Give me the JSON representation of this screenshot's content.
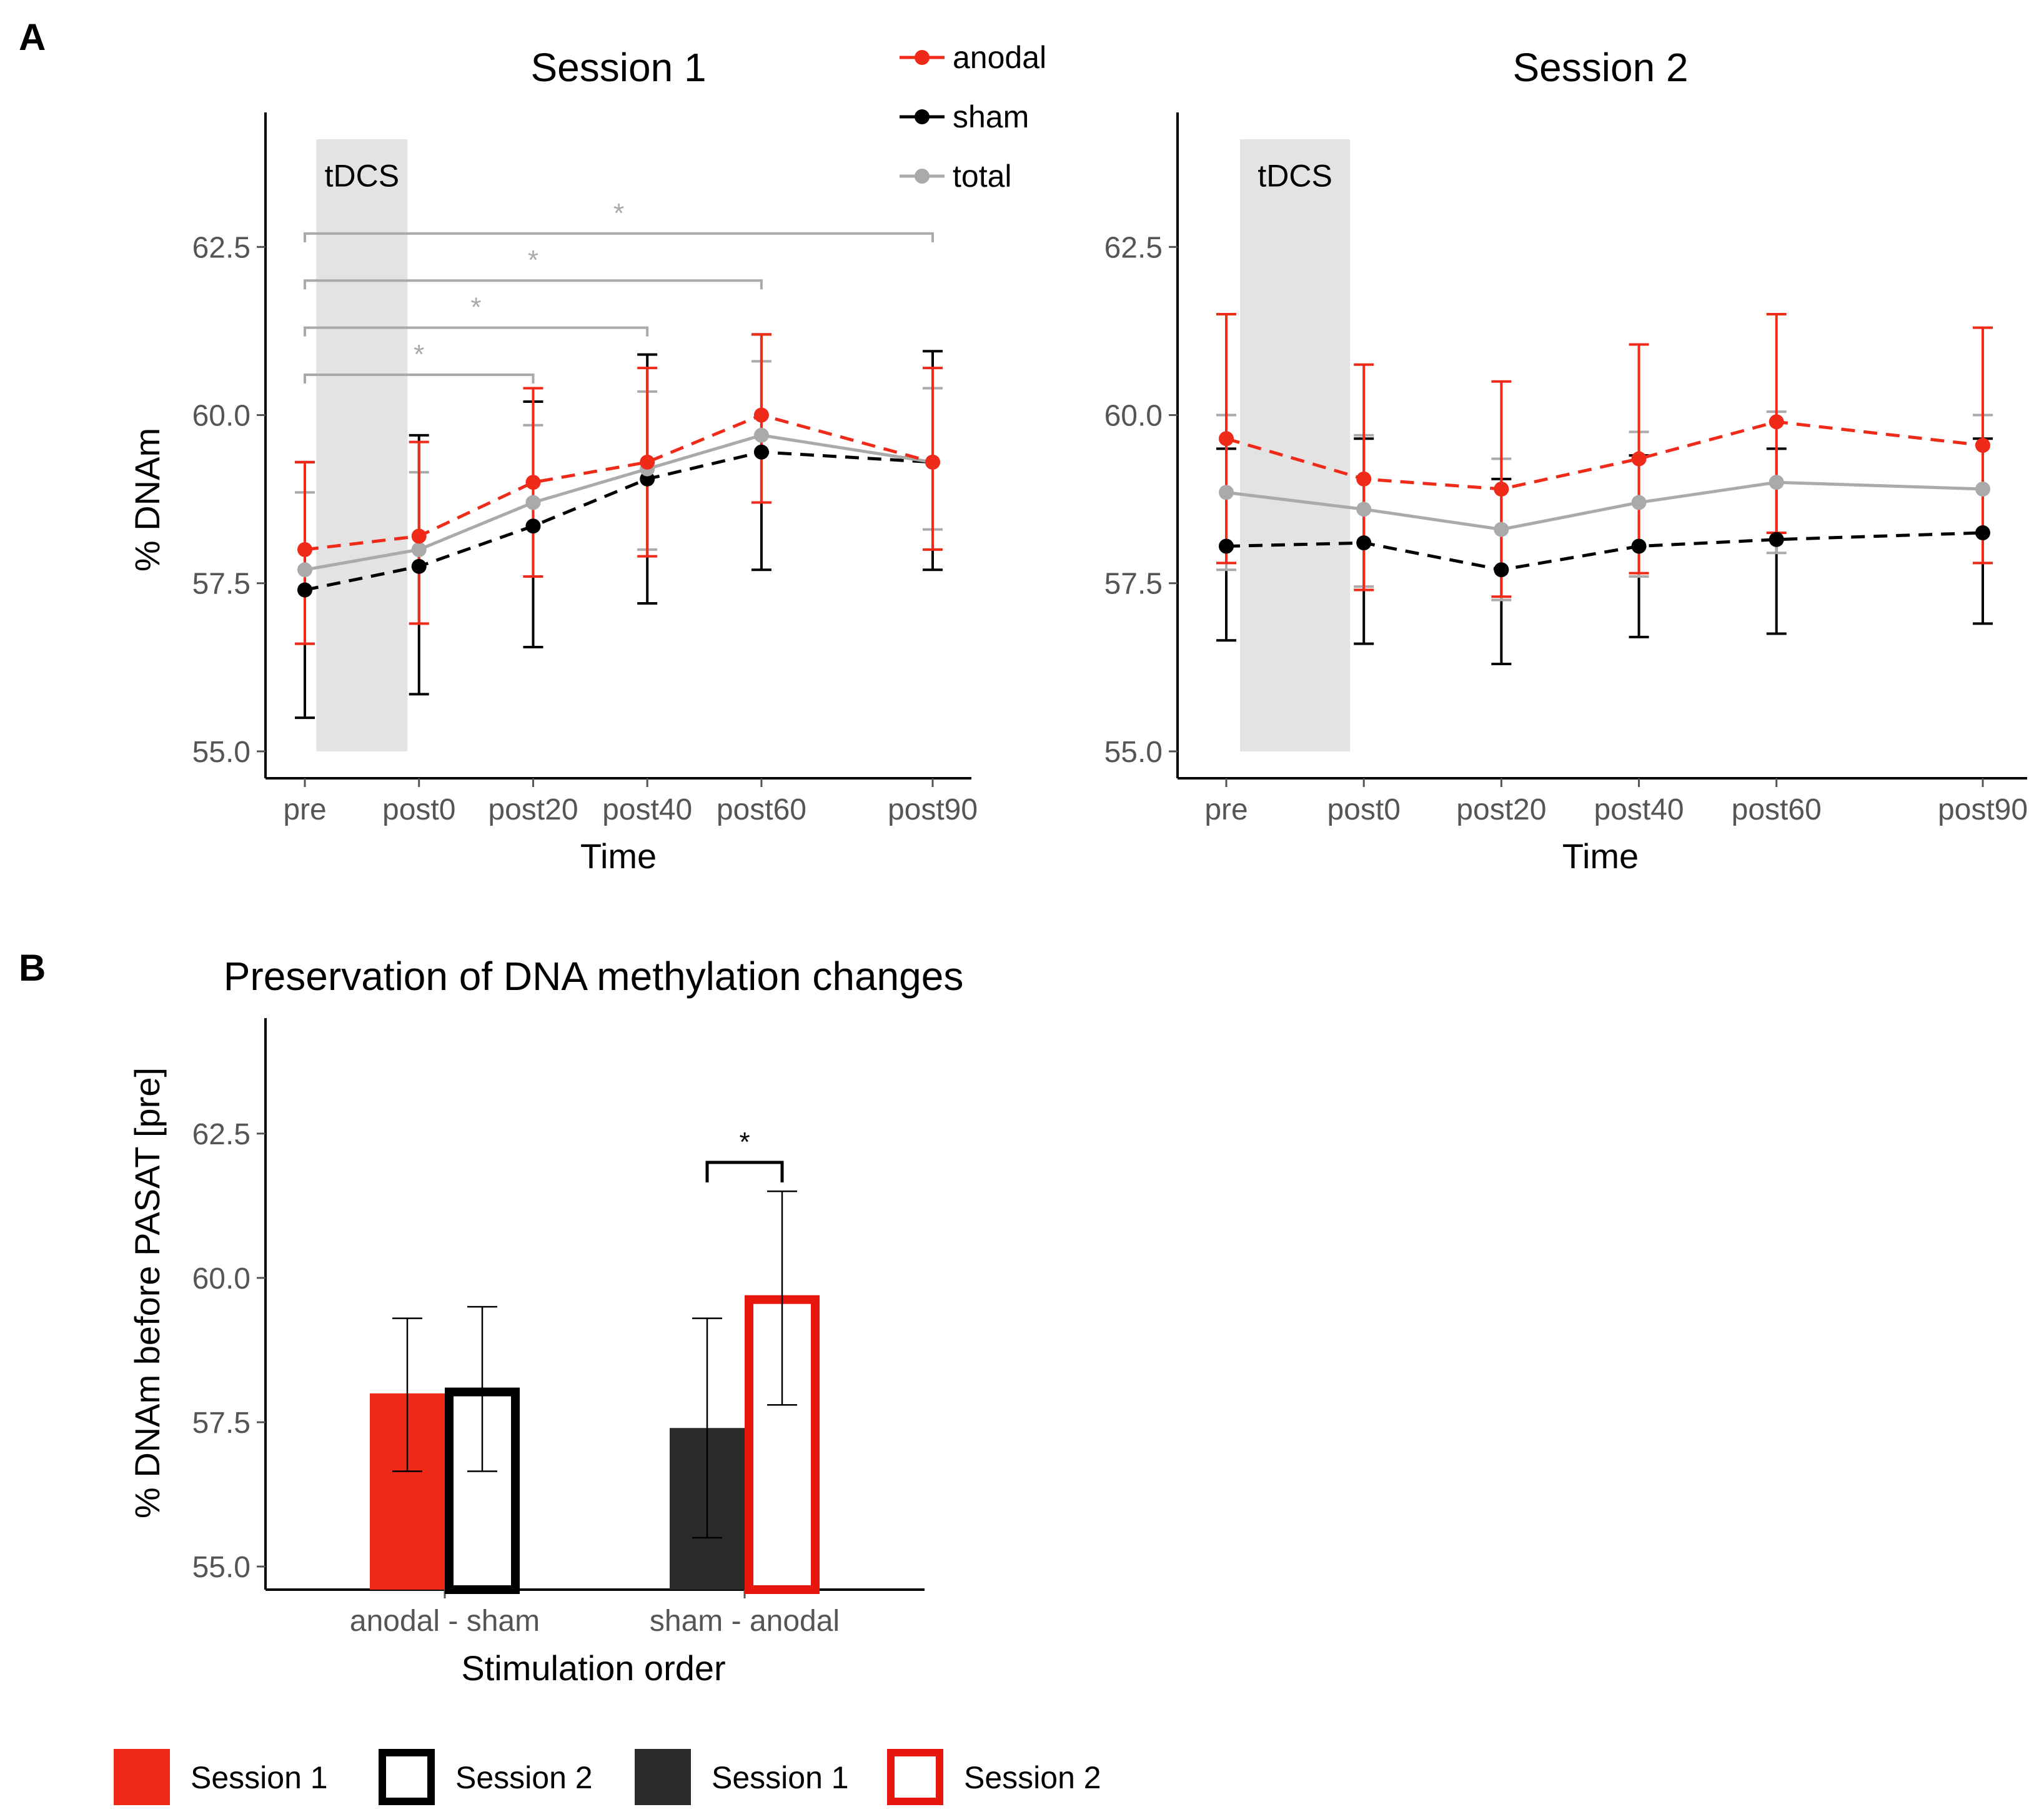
{
  "panel_labels": {
    "a": "A",
    "b": "B"
  },
  "colors": {
    "anodal": "#f02a18",
    "sham": "#000000",
    "total": "#aaaaaa",
    "shade": "#e3e3e3",
    "dark_bar": "#2b2b2b"
  },
  "chart_data": [
    {
      "type": "line",
      "title": "Session 1",
      "xlabel": "Time",
      "ylabel": "% DNAm",
      "categories": [
        "pre",
        "post0",
        "post20",
        "post40",
        "post60",
        "post90"
      ],
      "x": [
        0,
        10,
        20,
        30,
        40,
        55
      ],
      "yticks": [
        "55.0",
        "57.5",
        "60.0",
        "62.5"
      ],
      "ylim": [
        54.6,
        64.5
      ],
      "shade_label": "tDCS",
      "shade_x": [
        1,
        9
      ],
      "series": [
        {
          "name": "anodal",
          "values": [
            58.0,
            58.2,
            59.0,
            59.3,
            60.0,
            59.3
          ],
          "err_low": [
            56.6,
            56.9,
            57.6,
            57.9,
            58.7,
            58.0
          ],
          "err_high": [
            59.3,
            59.6,
            60.4,
            60.7,
            61.2,
            60.7
          ]
        },
        {
          "name": "sham",
          "values": [
            57.4,
            57.75,
            58.35,
            59.05,
            59.45,
            59.3
          ],
          "err_low": [
            55.5,
            55.85,
            56.55,
            57.2,
            57.7,
            57.7
          ],
          "err_high": [
            59.3,
            59.7,
            60.2,
            60.9,
            61.2,
            60.95
          ]
        },
        {
          "name": "total",
          "values": [
            57.7,
            58.0,
            58.7,
            59.2,
            59.7,
            59.3
          ],
          "err_low": [
            56.6,
            56.9,
            57.6,
            58.0,
            58.7,
            58.3
          ],
          "err_high": [
            58.85,
            59.15,
            59.85,
            60.35,
            60.8,
            60.4
          ]
        }
      ],
      "significance": [
        {
          "x1": 0,
          "x2": 20,
          "y": 60.6,
          "label": "*"
        },
        {
          "x1": 0,
          "x2": 30,
          "y": 61.3,
          "label": "*"
        },
        {
          "x1": 0,
          "x2": 40,
          "y": 62.0,
          "label": "*"
        },
        {
          "x1": 0,
          "x2": 55,
          "y": 62.7,
          "label": "*"
        }
      ],
      "legend": [
        "anodal",
        "sham",
        "total"
      ]
    },
    {
      "type": "line",
      "title": "Session 2",
      "xlabel": "Time",
      "ylabel": "",
      "categories": [
        "pre",
        "post0",
        "post20",
        "post40",
        "post60",
        "post90"
      ],
      "x": [
        0,
        10,
        20,
        30,
        40,
        55
      ],
      "yticks": [
        "55.0",
        "57.5",
        "60.0",
        "62.5"
      ],
      "ylim": [
        54.6,
        64.5
      ],
      "shade_label": "tDCS",
      "shade_x": [
        1,
        9
      ],
      "series": [
        {
          "name": "anodal",
          "values": [
            59.65,
            59.05,
            58.9,
            59.35,
            59.9,
            59.55
          ],
          "err_low": [
            57.8,
            57.4,
            57.3,
            57.65,
            58.25,
            57.8
          ],
          "err_high": [
            61.5,
            60.75,
            60.5,
            61.05,
            61.5,
            61.3
          ]
        },
        {
          "name": "sham",
          "values": [
            58.05,
            58.1,
            57.7,
            58.05,
            58.15,
            58.25
          ],
          "err_low": [
            56.65,
            56.6,
            56.3,
            56.7,
            56.75,
            56.9
          ],
          "err_high": [
            59.5,
            59.65,
            59.05,
            59.4,
            59.5,
            59.65
          ]
        },
        {
          "name": "total",
          "values": [
            58.85,
            58.6,
            58.3,
            58.7,
            59.0,
            58.9
          ],
          "err_low": [
            57.7,
            57.45,
            57.25,
            57.6,
            57.95,
            57.8
          ],
          "err_high": [
            60.0,
            59.7,
            59.35,
            59.75,
            60.05,
            60.0
          ]
        }
      ]
    },
    {
      "type": "bar",
      "title": "Preservation of DNA methylation changes",
      "xlabel": "Stimulation order",
      "ylabel": "% DNAm before PASAT [pre]",
      "categories": [
        "anodal - sham",
        "sham - anodal"
      ],
      "yticks": [
        "55.0",
        "57.5",
        "60.0",
        "62.5"
      ],
      "ylim": [
        54.6,
        64.5
      ],
      "series": [
        {
          "name": "Session 1",
          "values": [
            58.0,
            57.4
          ],
          "err_low": [
            56.65,
            55.5
          ],
          "err_high": [
            59.3,
            59.3
          ]
        },
        {
          "name": "Session 2",
          "values": [
            58.1,
            59.7
          ],
          "err_low": [
            56.65,
            57.8
          ],
          "err_high": [
            59.5,
            61.5
          ]
        }
      ],
      "significance": [
        {
          "category": "sham - anodal",
          "y": 62.0,
          "label": "*"
        }
      ],
      "legend": [
        {
          "label": "Session 1",
          "style": "filled-red"
        },
        {
          "label": "Session 2",
          "style": "outline-black"
        },
        {
          "label": "Session 1",
          "style": "filled-dark"
        },
        {
          "label": "Session 2",
          "style": "outline-red"
        }
      ]
    }
  ]
}
